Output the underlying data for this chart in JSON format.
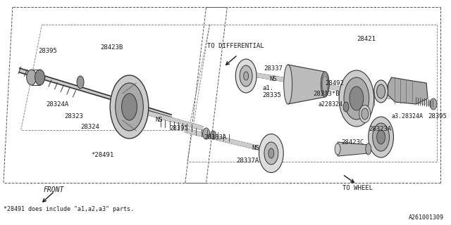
{
  "bg_color": "#ffffff",
  "line_color": "#1a1a1a",
  "footer_note": "*28491 does include \"a1,a2,a3\" parts.",
  "diagram_id": "A261001309",
  "to_differential": "TO DIFFERENTIAL",
  "to_wheel": "TO WHEEL",
  "front_label": "FRONT"
}
